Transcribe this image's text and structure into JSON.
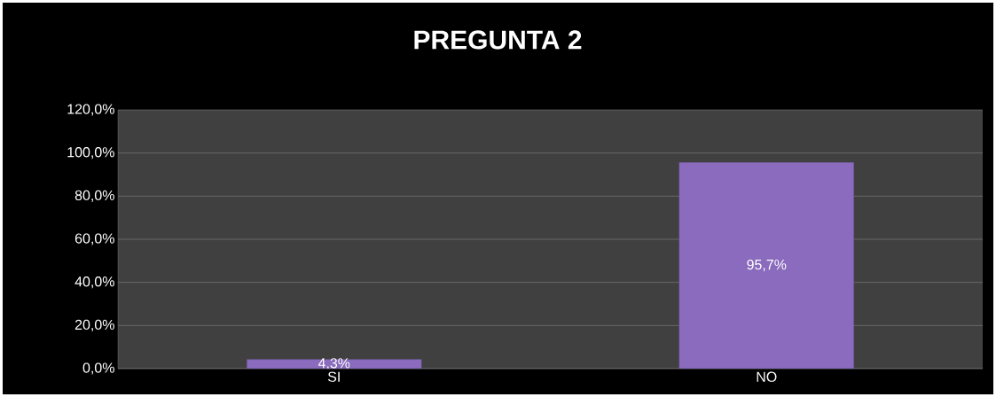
{
  "chart_data": {
    "type": "bar",
    "title": "PREGUNTA 2",
    "categories": [
      "SI",
      "NO"
    ],
    "values": [
      4.3,
      95.7
    ],
    "value_labels": [
      "4,3%",
      "95,7%"
    ],
    "color": "#8a6bbd",
    "ylim": [
      0,
      120
    ],
    "yticks": [
      {
        "value": 0,
        "label": "0,0%"
      },
      {
        "value": 20,
        "label": "20,0%"
      },
      {
        "value": 40,
        "label": "40,0%"
      },
      {
        "value": 60,
        "label": "60,0%"
      },
      {
        "value": 80,
        "label": "80,0%"
      },
      {
        "value": 100,
        "label": "100,0%"
      },
      {
        "value": 120,
        "label": "120,0%"
      }
    ],
    "grid": "y"
  }
}
